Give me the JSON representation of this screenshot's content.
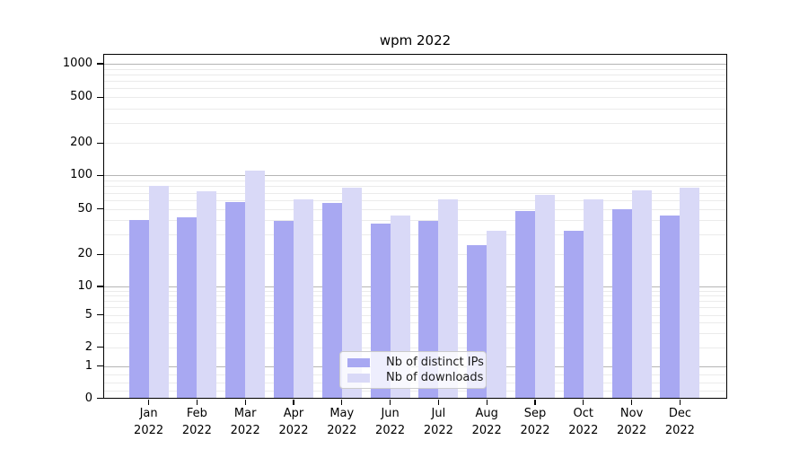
{
  "chart_data": {
    "type": "bar",
    "title": "wpm 2022",
    "categories": [
      "Jan",
      "Feb",
      "Mar",
      "Apr",
      "May",
      "Jun",
      "Jul",
      "Aug",
      "Sep",
      "Oct",
      "Nov",
      "Dec"
    ],
    "category_year": "2022",
    "series": [
      {
        "name": "Nb of distinct IPs",
        "color": "#a8a8f2",
        "values": [
          40,
          42,
          58,
          39,
          57,
          37,
          39,
          24,
          48,
          32,
          50,
          44
        ]
      },
      {
        "name": "Nb of downloads",
        "color": "#d9d9f7",
        "values": [
          80,
          72,
          110,
          61,
          77,
          44,
          61,
          32,
          67,
          61,
          74,
          78
        ]
      }
    ],
    "y_axis": {
      "scale": "symlog",
      "ticks": [
        0,
        1,
        2,
        5,
        10,
        20,
        50,
        100,
        200,
        500,
        1000
      ],
      "top": 1000
    },
    "x_axis": {
      "tick_label_second_line": "2022"
    },
    "grid": "on",
    "legend": {
      "position": "lower-center",
      "entries": [
        "Nb of distinct IPs",
        "Nb of downloads"
      ]
    },
    "colors": {
      "series_dark": "#a8a8f2",
      "series_light": "#d9d9f7",
      "grid_major": "#b5b5b5",
      "grid_minor": "#ebebeb",
      "axis": "#000000"
    }
  }
}
